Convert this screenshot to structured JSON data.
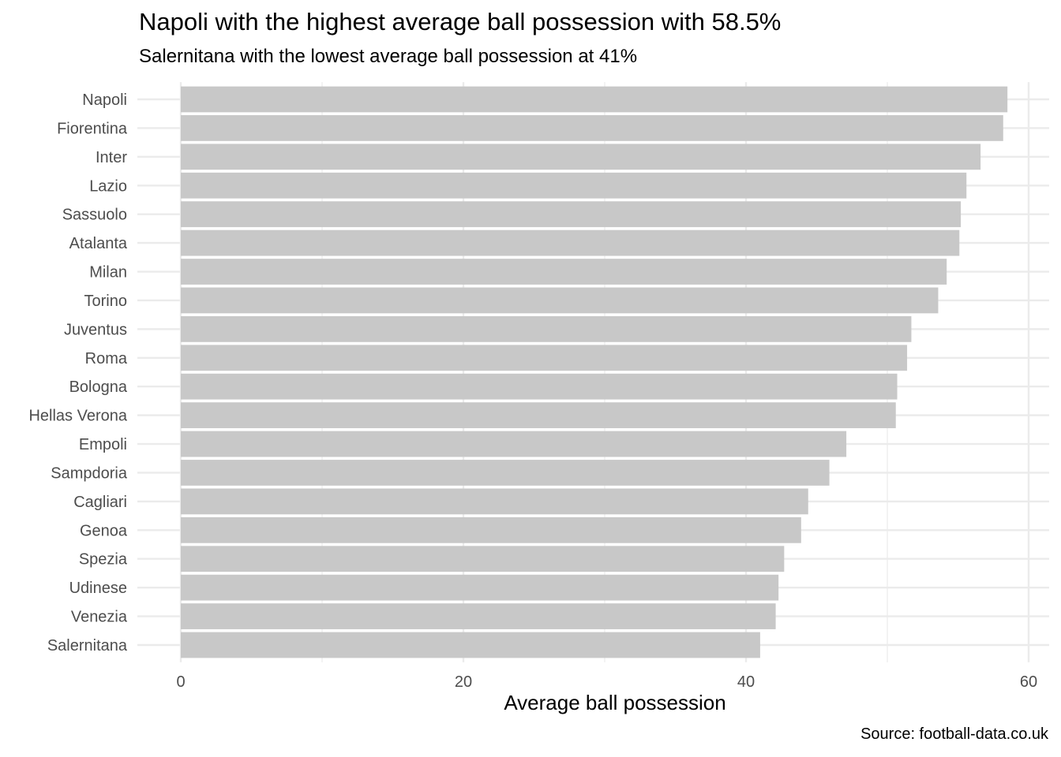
{
  "chart_data": {
    "type": "bar",
    "orientation": "horizontal",
    "title": "Napoli with the highest average ball possession with 58.5%",
    "subtitle": "Salernitana with the lowest average ball possession at 41%",
    "xlabel": "Average ball possession",
    "ylabel": "",
    "caption": "Source: football-data.co.uk",
    "xlim": [
      0,
      61.3
    ],
    "x_ticks": [
      "0",
      "20",
      "40",
      "60"
    ],
    "grid": true,
    "bar_color": "#c8c8c8",
    "gridline_color": "#ebebeb",
    "categories": [
      "Napoli",
      "Fiorentina",
      "Inter",
      "Lazio",
      "Sassuolo",
      "Atalanta",
      "Milan",
      "Torino",
      "Juventus",
      "Roma",
      "Bologna",
      "Hellas Verona",
      "Empoli",
      "Sampdoria",
      "Cagliari",
      "Genoa",
      "Spezia",
      "Udinese",
      "Venezia",
      "Salernitana"
    ],
    "values": [
      58.5,
      58.2,
      56.6,
      55.6,
      55.2,
      55.1,
      54.2,
      53.6,
      51.7,
      51.4,
      50.7,
      50.6,
      47.1,
      45.9,
      44.4,
      43.9,
      42.7,
      42.3,
      42.1,
      41.0
    ]
  }
}
